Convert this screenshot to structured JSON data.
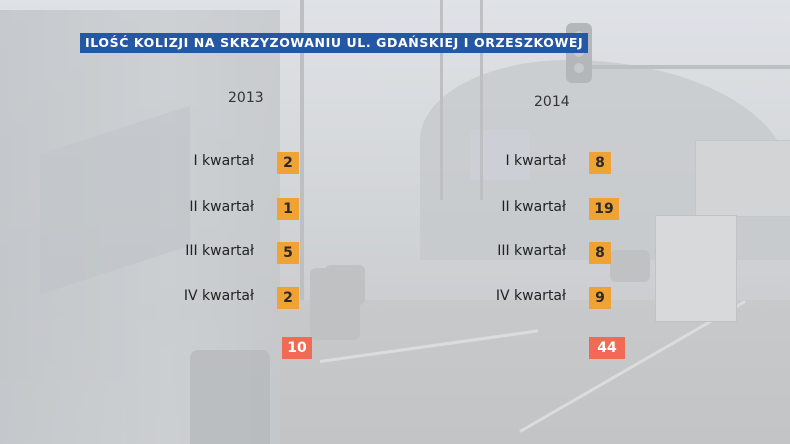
{
  "title": "ILOŚĆ KOLIZJI NA SKRZYZOWANIU UL. GDAŃSKIEJ I ORZESZKOWEJ",
  "columns": [
    {
      "year": "2013",
      "rows": [
        {
          "label": "I kwartał",
          "value": "2"
        },
        {
          "label": "II kwartał",
          "value": "1"
        },
        {
          "label": "III kwartał",
          "value": "5"
        },
        {
          "label": "IV kwartał",
          "value": "2"
        }
      ],
      "total": "10"
    },
    {
      "year": "2014",
      "rows": [
        {
          "label": "I kwartał",
          "value": "8"
        },
        {
          "label": "II kwartał",
          "value": "19"
        },
        {
          "label": "III kwartał",
          "value": "8"
        },
        {
          "label": "IV kwartał",
          "value": "9"
        }
      ],
      "total": "44"
    }
  ],
  "colors": {
    "title_bg": "#2457a6",
    "value_box": "#f0a335",
    "total_box": "#f06a55"
  }
}
